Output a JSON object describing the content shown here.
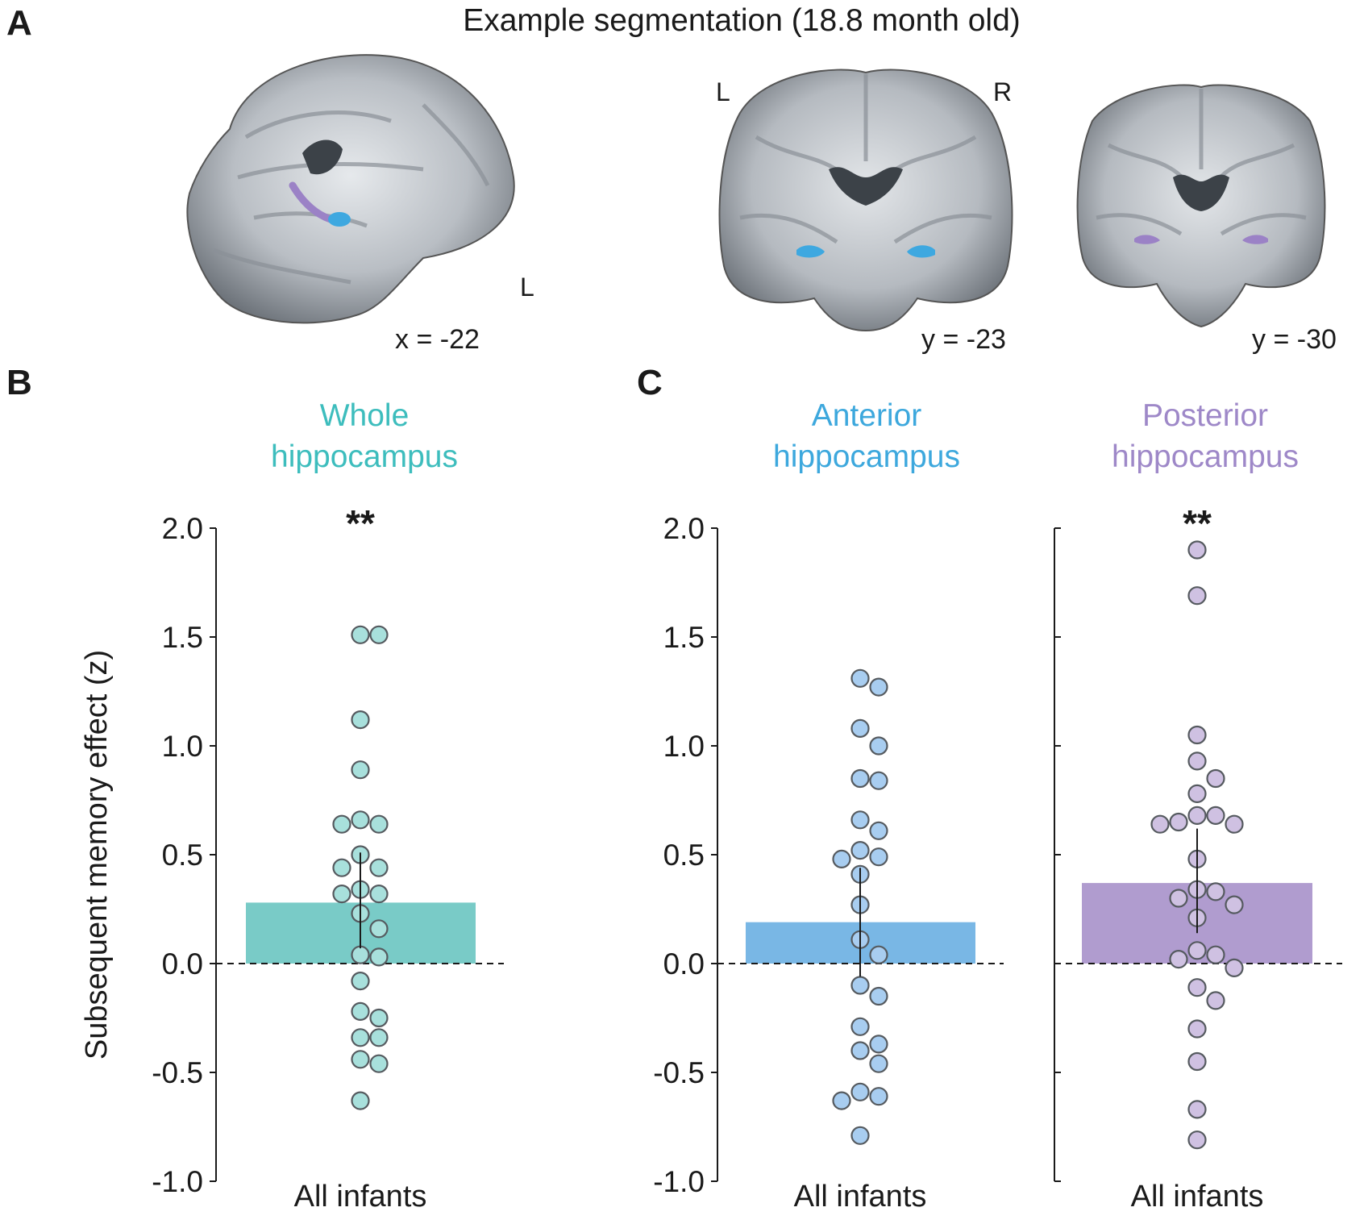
{
  "panels": {
    "a": "A",
    "b": "B",
    "c": "C"
  },
  "segmentation": {
    "title": "Example segmentation (18.8 month old)",
    "sagittal_label": "x = -22",
    "sagittal_side": "L",
    "coronal1_label": "y = -23",
    "coronal1_left": "L",
    "coronal1_right": "R",
    "coronal2_label": "y = -30"
  },
  "colors": {
    "whole": "#3dbdbd",
    "whole_bar": "#79cbc7",
    "whole_point": "#a8e0dc",
    "anterior": "#3da8dd",
    "anterior_bar": "#79b7e5",
    "anterior_point": "#a8cdf0",
    "posterior": "#9e88c8",
    "posterior_bar": "#b09ccf",
    "posterior_point": "#cfc1e2",
    "brain_anterior": "#3ea8e0",
    "brain_posterior": "#9b82c6"
  },
  "ylabel": "Subsequent memory effect (z)",
  "chart_data": [
    {
      "type": "bar",
      "panel": "B",
      "title": [
        "Whole",
        "hippocampus"
      ],
      "categories": [
        "All infants"
      ],
      "mean": 0.28,
      "error_low": 0.07,
      "error_high": 0.51,
      "significance": "**",
      "ylim": [
        -1.0,
        2.0
      ],
      "yticks": [
        "-1.0",
        "-0.5",
        "0.0",
        "0.5",
        "1.0",
        "1.5",
        "2.0"
      ],
      "points": [
        1.51,
        1.51,
        1.12,
        0.89,
        0.66,
        0.64,
        0.64,
        0.5,
        0.44,
        0.44,
        0.34,
        0.32,
        0.32,
        0.23,
        0.16,
        0.04,
        0.03,
        -0.08,
        -0.22,
        -0.25,
        -0.34,
        -0.34,
        -0.44,
        -0.46,
        -0.63
      ]
    },
    {
      "type": "bar",
      "panel": "C",
      "title": [
        "Anterior",
        "hippocampus"
      ],
      "categories": [
        "All infants"
      ],
      "mean": 0.19,
      "error_low": -0.06,
      "error_high": 0.44,
      "significance": "",
      "ylim": [
        -1.0,
        2.0
      ],
      "yticks": [
        "-1.0",
        "-0.5",
        "0.0",
        "0.5",
        "1.0",
        "1.5",
        "2.0"
      ],
      "points": [
        1.31,
        1.27,
        1.08,
        1.0,
        0.85,
        0.84,
        0.66,
        0.61,
        0.52,
        0.49,
        0.48,
        0.41,
        0.27,
        0.11,
        0.04,
        -0.1,
        -0.15,
        -0.29,
        -0.37,
        -0.4,
        -0.46,
        -0.59,
        -0.61,
        -0.63,
        -0.79
      ]
    },
    {
      "type": "bar",
      "panel": "C",
      "title": [
        "Posterior",
        "hippocampus"
      ],
      "categories": [
        "All infants"
      ],
      "mean": 0.37,
      "error_low": 0.14,
      "error_high": 0.62,
      "significance": "**",
      "ylim": [
        -1.0,
        2.0
      ],
      "yticks": [
        "",
        "",
        "",
        "",
        "",
        "",
        ""
      ],
      "points": [
        1.9,
        1.69,
        1.05,
        0.93,
        0.85,
        0.78,
        0.68,
        0.68,
        0.64,
        0.64,
        0.65,
        0.48,
        0.34,
        0.33,
        0.3,
        0.27,
        0.21,
        0.06,
        0.04,
        0.02,
        -0.02,
        -0.11,
        -0.17,
        -0.3,
        -0.45,
        -0.67,
        -0.81
      ]
    }
  ]
}
